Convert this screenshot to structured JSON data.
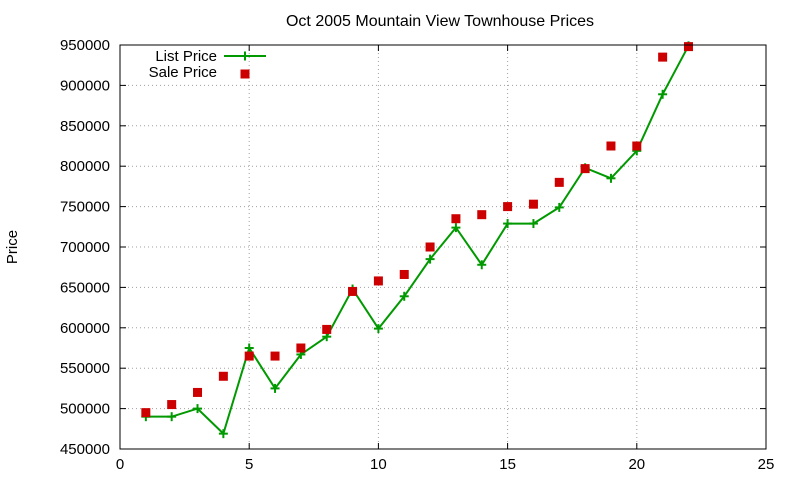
{
  "chart_data": {
    "type": "scatter",
    "title": "Oct 2005 Mountain View Townhouse Prices",
    "xlabel": "",
    "ylabel": "Price",
    "xlim": [
      0,
      25
    ],
    "ylim": [
      450000,
      950000
    ],
    "x_ticks": [
      0,
      5,
      10,
      15,
      20,
      25
    ],
    "y_ticks": [
      450000,
      500000,
      550000,
      600000,
      650000,
      700000,
      750000,
      800000,
      850000,
      900000,
      950000
    ],
    "grid": true,
    "legend_position": "top-left",
    "series": [
      {
        "name": "List Price",
        "style": "line-with-plus-markers",
        "color": "#009900",
        "x": [
          1,
          2,
          3,
          4,
          5,
          6,
          7,
          8,
          9,
          10,
          11,
          12,
          13,
          14,
          15,
          16,
          17,
          18,
          19,
          20,
          21,
          22
        ],
        "y": [
          490000,
          490000,
          500000,
          469000,
          575000,
          525000,
          567000,
          589000,
          648000,
          599000,
          639000,
          685000,
          724000,
          678000,
          729000,
          729000,
          749000,
          798000,
          785000,
          819000,
          889000,
          949000
        ]
      },
      {
        "name": "Sale Price",
        "style": "square-markers",
        "color": "#cc0000",
        "x": [
          1,
          2,
          3,
          4,
          5,
          6,
          7,
          8,
          9,
          10,
          11,
          12,
          13,
          14,
          15,
          16,
          17,
          18,
          19,
          20,
          21,
          22
        ],
        "y": [
          495000,
          505000,
          520000,
          540000,
          565000,
          565000,
          575000,
          598000,
          645000,
          658000,
          666000,
          700000,
          735000,
          740000,
          750000,
          753000,
          780000,
          797000,
          825000,
          825000,
          935000,
          948000
        ]
      }
    ]
  }
}
